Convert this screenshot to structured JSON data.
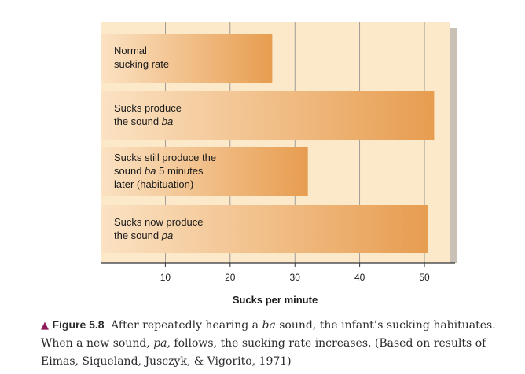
{
  "chart_data": {
    "type": "bar",
    "orientation": "horizontal",
    "categories": [
      "Normal sucking rate",
      "Sucks produce the sound ba",
      "Sucks still produce the sound ba 5 minutes later (habituation)",
      "Sucks now produce the sound pa"
    ],
    "values": [
      26.5,
      51.5,
      32,
      50.5
    ],
    "xlabel": "Sucks per minute",
    "xlim": [
      0,
      54
    ],
    "xticks": [
      "10",
      "20",
      "30",
      "40",
      "50"
    ],
    "grid": true,
    "legend": "none"
  },
  "bar_labels": [
    {
      "l1": "Normal",
      "l2": "sucking rate"
    },
    {
      "l1": "Sucks produce",
      "l2": "the sound ",
      "l2_italic": "ba"
    },
    {
      "l1": "Sucks still produce the",
      "l2": "sound ",
      "l2_italic": "ba",
      "l2_after": " 5 minutes",
      "l3": "later (habituation)"
    },
    {
      "l1": "Sucks now produce",
      "l2": "the sound ",
      "l2_italic": "pa"
    }
  ],
  "caption": {
    "marker": "▲",
    "label": "Figure 5.8",
    "t1": "After repeatedly hearing a ",
    "i1": "ba",
    "t2": " sound, the infant’s sucking habituates. When a new sound, ",
    "i2": "pa",
    "t3": ", follows, the sucking rate increases. (Based on results of Eimas, Siqueland, Jusczyk, & Vigorito, 1971)"
  },
  "colors": {
    "panel": "#fce9c9",
    "shadow": "#c9c1b6",
    "bar_start": "#fbe2c3",
    "bar_end": "#e79d50",
    "grid": "#8a8a8a",
    "caption_marker": "#8c1c5a"
  }
}
